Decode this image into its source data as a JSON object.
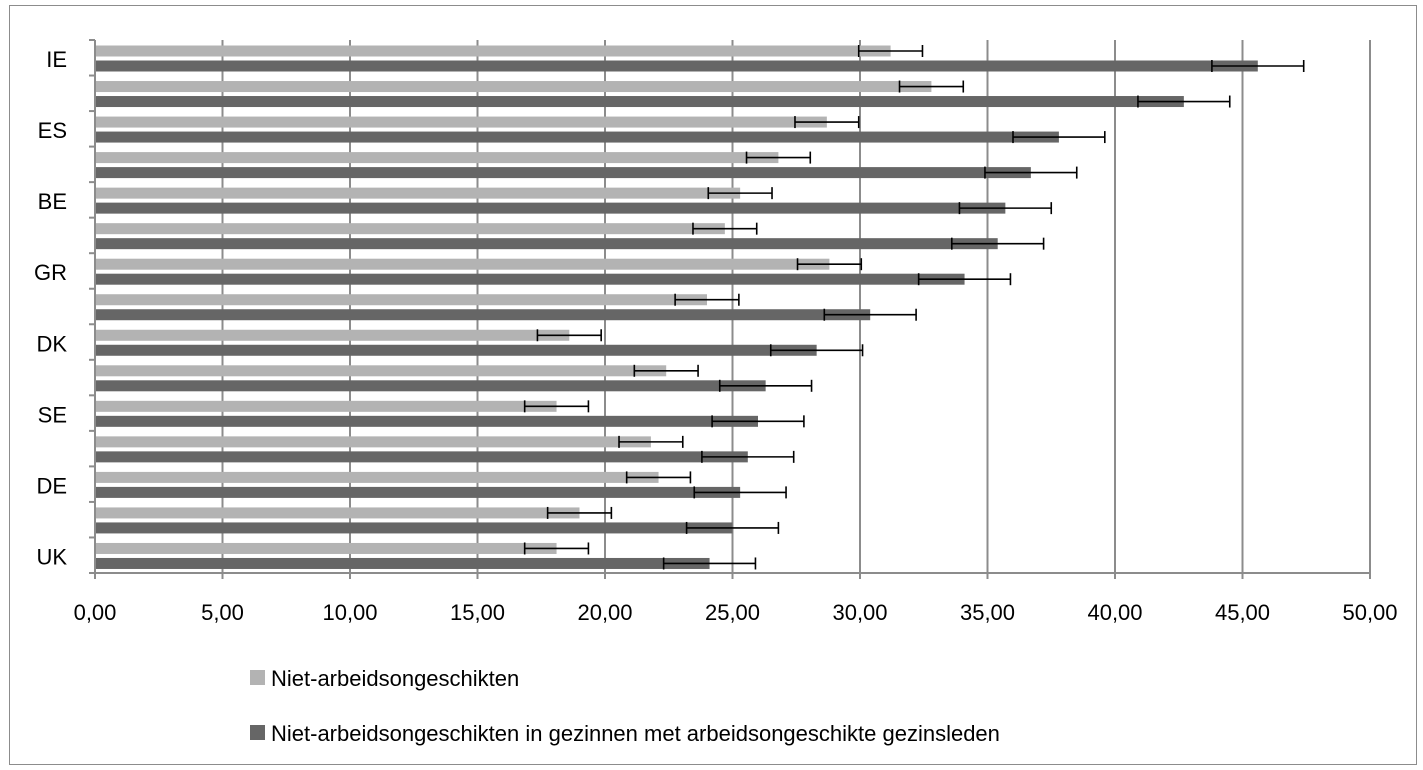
{
  "chart_data": {
    "type": "bar",
    "orientation": "horizontal",
    "title": "",
    "xlabel": "",
    "ylabel": "",
    "xlim": [
      0,
      50
    ],
    "x_ticks": [
      "0,00",
      "5,00",
      "10,00",
      "15,00",
      "20,00",
      "25,00",
      "30,00",
      "35,00",
      "40,00",
      "45,00",
      "50,00"
    ],
    "categories": [
      "IE",
      "",
      "ES",
      "",
      "BE",
      "",
      "GR",
      "",
      "DK",
      "",
      "SE",
      "",
      "DE",
      "",
      "UK"
    ],
    "category_labels_shown": [
      "IE",
      "ES",
      "BE",
      "GR",
      "DK",
      "SE",
      "DE",
      "UK"
    ],
    "grid": "vertical",
    "legend_position": "bottom",
    "series": [
      {
        "name": "Niet-arbeidsongeschikten",
        "color": "#b3b3b3",
        "values": [
          31.2,
          32.8,
          28.7,
          26.8,
          25.3,
          24.7,
          28.8,
          24.0,
          18.6,
          22.4,
          18.1,
          21.8,
          22.1,
          19.0,
          18.1
        ],
        "error": [
          1.25,
          1.25,
          1.25,
          1.25,
          1.25,
          1.25,
          1.25,
          1.25,
          1.25,
          1.25,
          1.25,
          1.25,
          1.25,
          1.25,
          1.25
        ]
      },
      {
        "name": "Niet-arbeidsongeschikten in gezinnen met arbeidsongeschikte gezinsleden",
        "color": "#666666",
        "values": [
          45.6,
          42.7,
          37.8,
          36.7,
          35.7,
          35.4,
          34.1,
          30.4,
          28.3,
          26.3,
          26.0,
          25.6,
          25.3,
          25.0,
          24.1
        ],
        "error": [
          1.8,
          1.8,
          1.8,
          1.8,
          1.8,
          1.8,
          1.8,
          1.8,
          1.8,
          1.8,
          1.8,
          1.8,
          1.8,
          1.8,
          1.8
        ]
      }
    ]
  }
}
